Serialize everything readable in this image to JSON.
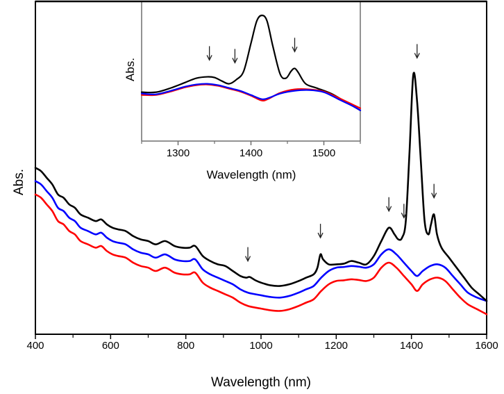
{
  "chart_data": [
    {
      "id": "main",
      "type": "line",
      "title": "",
      "xlabel": "Wavelength (nm)",
      "ylabel": "Abs.",
      "xlim": [
        400,
        1600
      ],
      "ylim": [
        0,
        1
      ],
      "y_units": "arbitrary (no tick labels shown)",
      "x_ticks": [
        400,
        600,
        800,
        1000,
        1200,
        1400,
        1600
      ],
      "x_minor_ticks": [
        500,
        700,
        900,
        1100,
        1300,
        1500
      ],
      "grid": false,
      "legend": null,
      "series": [
        {
          "name": "black",
          "color": "#000000",
          "x": [
            400,
            415,
            430,
            445,
            460,
            475,
            490,
            505,
            520,
            540,
            560,
            575,
            590,
            605,
            620,
            640,
            660,
            680,
            700,
            720,
            745,
            770,
            790,
            810,
            825,
            845,
            865,
            885,
            905,
            925,
            945,
            960,
            970,
            985,
            1000,
            1025,
            1050,
            1075,
            1100,
            1120,
            1140,
            1150,
            1158,
            1165,
            1180,
            1200,
            1220,
            1240,
            1260,
            1280,
            1300,
            1320,
            1340,
            1355,
            1365,
            1375,
            1385,
            1395,
            1405,
            1415,
            1425,
            1435,
            1445,
            1452,
            1460,
            1468,
            1480,
            1500,
            1520,
            1540,
            1560,
            1580,
            1600
          ],
          "y": [
            0.5,
            0.49,
            0.47,
            0.45,
            0.42,
            0.41,
            0.39,
            0.38,
            0.36,
            0.35,
            0.34,
            0.345,
            0.33,
            0.32,
            0.315,
            0.31,
            0.295,
            0.285,
            0.28,
            0.27,
            0.28,
            0.265,
            0.26,
            0.26,
            0.265,
            0.235,
            0.22,
            0.21,
            0.205,
            0.19,
            0.175,
            0.17,
            0.172,
            0.162,
            0.155,
            0.147,
            0.145,
            0.15,
            0.16,
            0.17,
            0.18,
            0.2,
            0.24,
            0.225,
            0.21,
            0.21,
            0.212,
            0.22,
            0.215,
            0.21,
            0.235,
            0.28,
            0.32,
            0.3,
            0.285,
            0.29,
            0.34,
            0.55,
            0.78,
            0.7,
            0.52,
            0.34,
            0.3,
            0.33,
            0.36,
            0.3,
            0.26,
            0.23,
            0.2,
            0.17,
            0.14,
            0.12,
            0.1
          ]
        },
        {
          "name": "blue",
          "color": "#0000ff",
          "x": [
            400,
            415,
            430,
            445,
            460,
            475,
            490,
            505,
            520,
            540,
            560,
            575,
            590,
            605,
            620,
            640,
            660,
            680,
            700,
            720,
            745,
            770,
            790,
            810,
            825,
            845,
            865,
            885,
            905,
            925,
            945,
            965,
            985,
            1000,
            1025,
            1050,
            1075,
            1100,
            1120,
            1140,
            1160,
            1180,
            1200,
            1220,
            1240,
            1260,
            1280,
            1300,
            1320,
            1340,
            1360,
            1380,
            1400,
            1415,
            1430,
            1450,
            1470,
            1490,
            1510,
            1530,
            1550,
            1575,
            1600
          ],
          "y": [
            0.46,
            0.45,
            0.43,
            0.41,
            0.38,
            0.37,
            0.35,
            0.34,
            0.32,
            0.31,
            0.3,
            0.305,
            0.29,
            0.28,
            0.275,
            0.27,
            0.255,
            0.245,
            0.24,
            0.23,
            0.24,
            0.225,
            0.22,
            0.22,
            0.225,
            0.195,
            0.18,
            0.17,
            0.16,
            0.15,
            0.135,
            0.125,
            0.12,
            0.117,
            0.112,
            0.11,
            0.115,
            0.125,
            0.135,
            0.145,
            0.17,
            0.19,
            0.2,
            0.202,
            0.205,
            0.203,
            0.2,
            0.21,
            0.24,
            0.255,
            0.24,
            0.215,
            0.19,
            0.175,
            0.19,
            0.205,
            0.21,
            0.2,
            0.175,
            0.15,
            0.125,
            0.11,
            0.1
          ]
        },
        {
          "name": "red",
          "color": "#ff0000",
          "x": [
            400,
            415,
            430,
            445,
            460,
            475,
            490,
            505,
            520,
            540,
            560,
            575,
            590,
            605,
            620,
            640,
            660,
            680,
            700,
            720,
            745,
            770,
            790,
            810,
            825,
            845,
            865,
            885,
            905,
            925,
            945,
            965,
            985,
            1000,
            1025,
            1050,
            1075,
            1100,
            1120,
            1140,
            1160,
            1180,
            1200,
            1220,
            1240,
            1260,
            1280,
            1300,
            1320,
            1340,
            1360,
            1380,
            1400,
            1415,
            1430,
            1450,
            1470,
            1490,
            1510,
            1530,
            1550,
            1575,
            1600
          ],
          "y": [
            0.42,
            0.41,
            0.39,
            0.37,
            0.34,
            0.33,
            0.31,
            0.3,
            0.28,
            0.27,
            0.26,
            0.265,
            0.25,
            0.24,
            0.235,
            0.23,
            0.215,
            0.205,
            0.2,
            0.19,
            0.2,
            0.185,
            0.18,
            0.18,
            0.185,
            0.155,
            0.14,
            0.13,
            0.12,
            0.11,
            0.095,
            0.085,
            0.08,
            0.077,
            0.072,
            0.07,
            0.075,
            0.085,
            0.095,
            0.105,
            0.13,
            0.15,
            0.16,
            0.162,
            0.165,
            0.163,
            0.16,
            0.17,
            0.2,
            0.215,
            0.2,
            0.175,
            0.15,
            0.13,
            0.15,
            0.165,
            0.17,
            0.16,
            0.135,
            0.11,
            0.09,
            0.075,
            0.06
          ]
        }
      ],
      "annotations": [
        {
          "type": "arrow-down",
          "x": 965,
          "y": 0.22
        },
        {
          "type": "arrow-down",
          "x": 1158,
          "y": 0.29
        },
        {
          "type": "arrow-down",
          "x": 1340,
          "y": 0.37
        },
        {
          "type": "arrow-down",
          "x": 1380,
          "y": 0.35
        },
        {
          "type": "arrow-down",
          "x": 1415,
          "y": 0.83
        },
        {
          "type": "arrow-down",
          "x": 1460,
          "y": 0.41
        }
      ]
    },
    {
      "id": "inset",
      "type": "line",
      "title": "",
      "xlabel": "Wavelength (nm)",
      "ylabel": "Abs.",
      "xlim": [
        1250,
        1550
      ],
      "ylim": [
        0,
        1
      ],
      "y_units": "arbitrary (no tick labels shown)",
      "x_ticks": [
        1300,
        1400,
        1500
      ],
      "x_minor_ticks": [
        1250,
        1350,
        1450,
        1550
      ],
      "grid": false,
      "legend": null,
      "series": [
        {
          "name": "black",
          "color": "#000000",
          "x": [
            1250,
            1270,
            1290,
            1310,
            1325,
            1340,
            1350,
            1360,
            1370,
            1380,
            1390,
            1400,
            1408,
            1415,
            1422,
            1430,
            1440,
            1448,
            1455,
            1460,
            1465,
            1475,
            1490,
            1510,
            1530,
            1550
          ],
          "y": [
            0.35,
            0.35,
            0.38,
            0.42,
            0.45,
            0.46,
            0.455,
            0.43,
            0.41,
            0.44,
            0.5,
            0.7,
            0.86,
            0.9,
            0.86,
            0.68,
            0.48,
            0.45,
            0.5,
            0.52,
            0.49,
            0.41,
            0.38,
            0.34,
            0.28,
            0.22
          ]
        },
        {
          "name": "blue",
          "color": "#0000ff",
          "x": [
            1250,
            1270,
            1290,
            1310,
            1325,
            1340,
            1355,
            1370,
            1385,
            1400,
            1415,
            1425,
            1440,
            1460,
            1480,
            1500,
            1520,
            1540,
            1550
          ],
          "y": [
            0.34,
            0.335,
            0.36,
            0.39,
            0.405,
            0.41,
            0.4,
            0.38,
            0.36,
            0.33,
            0.3,
            0.31,
            0.34,
            0.36,
            0.365,
            0.35,
            0.3,
            0.25,
            0.22
          ]
        },
        {
          "name": "red",
          "color": "#ff0000",
          "x": [
            1250,
            1270,
            1290,
            1310,
            1325,
            1340,
            1355,
            1370,
            1385,
            1400,
            1415,
            1425,
            1440,
            1460,
            1480,
            1500,
            1520,
            1540,
            1550
          ],
          "y": [
            0.33,
            0.33,
            0.355,
            0.385,
            0.4,
            0.405,
            0.395,
            0.375,
            0.355,
            0.325,
            0.29,
            0.305,
            0.345,
            0.37,
            0.37,
            0.355,
            0.31,
            0.26,
            0.235
          ]
        }
      ],
      "annotations": [
        {
          "type": "arrow-down",
          "x": 1343,
          "y": 0.58
        },
        {
          "type": "arrow-down",
          "x": 1378,
          "y": 0.56
        },
        {
          "type": "arrow-down",
          "x": 1416,
          "y": 1.02
        },
        {
          "type": "arrow-down",
          "x": 1460,
          "y": 0.64
        }
      ]
    }
  ]
}
